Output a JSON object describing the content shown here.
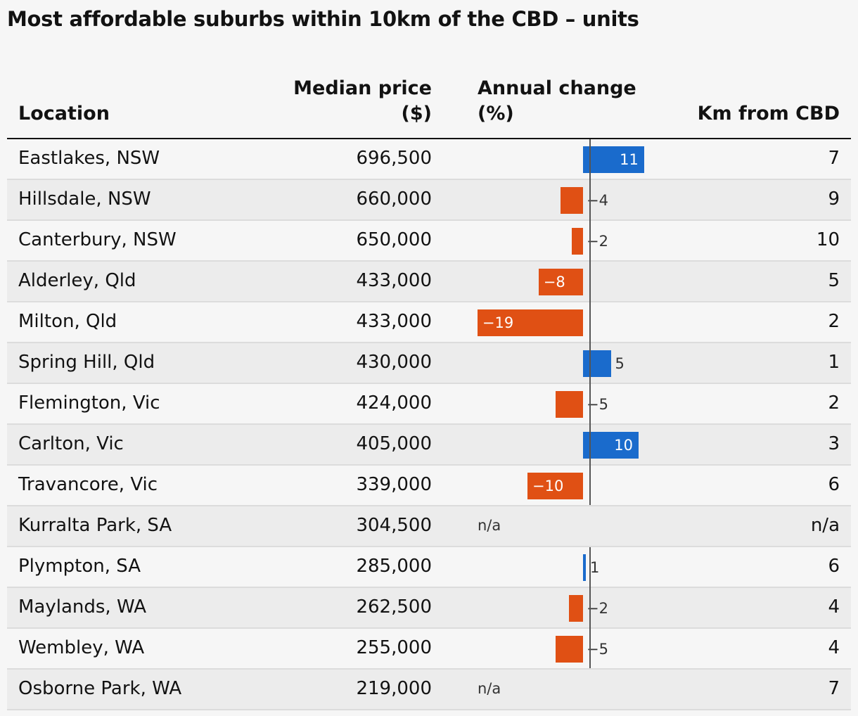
{
  "chart_data": {
    "type": "table",
    "title": "Most affordable suburbs within 10km of the CBD – units",
    "columns": {
      "location": "Location",
      "median_line1": "Median price",
      "median_line2": "($)",
      "change_line1": "Annual change",
      "change_line2": "(%)",
      "km": "Km from CBD"
    },
    "colors": {
      "positive": "#1a6bcc",
      "negative": "#e05014"
    },
    "rows": [
      {
        "location": "Eastlakes, NSW",
        "median": "696,500",
        "change": 11,
        "change_label": "11",
        "km": "7"
      },
      {
        "location": "Hillsdale, NSW",
        "median": "660,000",
        "change": -4,
        "change_label": "−4",
        "km": "9"
      },
      {
        "location": "Canterbury, NSW",
        "median": "650,000",
        "change": -2,
        "change_label": "−2",
        "km": "10"
      },
      {
        "location": "Alderley, Qld",
        "median": "433,000",
        "change": -8,
        "change_label": "−8",
        "km": "5"
      },
      {
        "location": "Milton, Qld",
        "median": "433,000",
        "change": -19,
        "change_label": "−19",
        "km": "2"
      },
      {
        "location": "Spring Hill, Qld",
        "median": "430,000",
        "change": 5,
        "change_label": "5",
        "km": "1"
      },
      {
        "location": "Flemington, Vic",
        "median": "424,000",
        "change": -5,
        "change_label": "−5",
        "km": "2"
      },
      {
        "location": "Carlton, Vic",
        "median": "405,000",
        "change": 10,
        "change_label": "10",
        "km": "3"
      },
      {
        "location": "Travancore, Vic",
        "median": "339,000",
        "change": -10,
        "change_label": "−10",
        "km": "6"
      },
      {
        "location": "Kurralta Park, SA",
        "median": "304,500",
        "change": null,
        "change_label": "n/a",
        "km": "n/a"
      },
      {
        "location": "Plympton, SA",
        "median": "285,000",
        "change": 0.5,
        "change_label": "1",
        "km": "6"
      },
      {
        "location": "Maylands, WA",
        "median": "262,500",
        "change": -2.5,
        "change_label": "−2",
        "km": "4"
      },
      {
        "location": "Wembley, WA",
        "median": "255,000",
        "change": -5,
        "change_label": "−5",
        "km": "4"
      },
      {
        "location": "Osborne Park, WA",
        "median": "219,000",
        "change": null,
        "change_label": "n/a",
        "km": "7"
      }
    ]
  }
}
